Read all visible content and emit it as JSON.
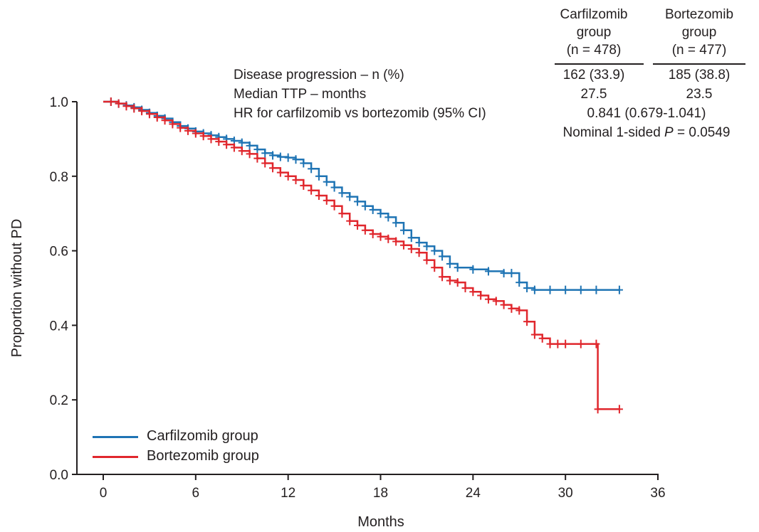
{
  "chart_data": {
    "type": "line",
    "xlabel": "Months",
    "ylabel": "Proportion without PD",
    "xlim": [
      0,
      36
    ],
    "ylim": [
      0,
      1.0
    ],
    "xticks": [
      "0",
      "6",
      "12",
      "18",
      "24",
      "30",
      "36"
    ],
    "yticks": [
      "0.0",
      "0.2",
      "0.4",
      "0.6",
      "0.8",
      "1.0"
    ],
    "grid": false,
    "legend_position": "bottom-left",
    "series": [
      {
        "name": "Carfilzomib group",
        "color": "#1f74b4",
        "x": [
          0,
          0.5,
          1,
          1.5,
          2,
          2.5,
          3,
          3.5,
          4,
          4.5,
          5,
          5.5,
          6,
          6.5,
          7,
          7.5,
          8,
          8.5,
          9,
          9.5,
          10,
          10.5,
          11,
          11.5,
          12,
          12.5,
          13,
          13.5,
          14,
          14.5,
          15,
          15.5,
          16,
          16.5,
          17,
          17.5,
          18,
          18.5,
          19,
          19.5,
          20,
          20.5,
          21,
          21.5,
          22,
          22.5,
          23,
          24,
          25,
          26,
          26.5,
          27,
          27.5,
          28,
          29,
          30,
          31,
          32,
          33.5
        ],
        "y": [
          1.0,
          1.0,
          0.995,
          0.99,
          0.985,
          0.978,
          0.97,
          0.962,
          0.955,
          0.945,
          0.935,
          0.928,
          0.92,
          0.915,
          0.91,
          0.905,
          0.9,
          0.895,
          0.89,
          0.882,
          0.872,
          0.862,
          0.856,
          0.852,
          0.85,
          0.845,
          0.835,
          0.82,
          0.8,
          0.785,
          0.77,
          0.755,
          0.745,
          0.732,
          0.72,
          0.71,
          0.7,
          0.69,
          0.675,
          0.655,
          0.635,
          0.622,
          0.612,
          0.6,
          0.585,
          0.565,
          0.555,
          0.55,
          0.545,
          0.54,
          0.54,
          0.515,
          0.5,
          0.495,
          0.495,
          0.495,
          0.495,
          0.495,
          0.495
        ]
      },
      {
        "name": "Bortezomib group",
        "color": "#e0272d",
        "x": [
          0,
          0.5,
          1,
          1.5,
          2,
          2.5,
          3,
          3.5,
          4,
          4.5,
          5,
          5.5,
          6,
          6.5,
          7,
          7.5,
          8,
          8.5,
          9,
          9.5,
          10,
          10.5,
          11,
          11.5,
          12,
          12.5,
          13,
          13.5,
          14,
          14.5,
          15,
          15.5,
          16,
          16.5,
          17,
          17.5,
          18,
          18.5,
          19,
          19.5,
          20,
          20.5,
          21,
          21.5,
          22,
          22.5,
          23,
          23.5,
          24,
          24.5,
          25,
          25.5,
          26,
          26.5,
          27,
          27.5,
          28,
          28.5,
          29,
          29.5,
          30,
          31,
          32,
          32.1,
          33.5
        ],
        "y": [
          1.0,
          1.0,
          0.995,
          0.988,
          0.982,
          0.975,
          0.967,
          0.958,
          0.95,
          0.94,
          0.93,
          0.922,
          0.915,
          0.908,
          0.9,
          0.893,
          0.885,
          0.877,
          0.868,
          0.86,
          0.848,
          0.835,
          0.822,
          0.81,
          0.8,
          0.79,
          0.775,
          0.762,
          0.748,
          0.735,
          0.72,
          0.7,
          0.68,
          0.668,
          0.655,
          0.645,
          0.638,
          0.632,
          0.625,
          0.615,
          0.605,
          0.595,
          0.575,
          0.555,
          0.53,
          0.52,
          0.515,
          0.5,
          0.49,
          0.48,
          0.47,
          0.465,
          0.455,
          0.445,
          0.44,
          0.41,
          0.375,
          0.365,
          0.35,
          0.35,
          0.35,
          0.35,
          0.35,
          0.175,
          0.175
        ]
      }
    ]
  },
  "stats_table": {
    "col1_header": [
      "Carfilzomib",
      "group",
      "(n = 478)"
    ],
    "col2_header": [
      "Bortezomib",
      "group",
      "(n = 477)"
    ],
    "rows": [
      {
        "label": "Disease progression – n (%)",
        "col1": "162 (33.9)",
        "col2": "185 (38.8)"
      },
      {
        "label": "Median TTP – months",
        "col1": "27.5",
        "col2": "23.5"
      }
    ],
    "hr_label": "HR for carfilzomib vs bortezomib (95% CI)",
    "hr_value": "0.841 (0.679-1.041)",
    "p_prefix": "Nominal 1-sided ",
    "p_symbol": "P",
    "p_suffix": " = 0.0549"
  }
}
